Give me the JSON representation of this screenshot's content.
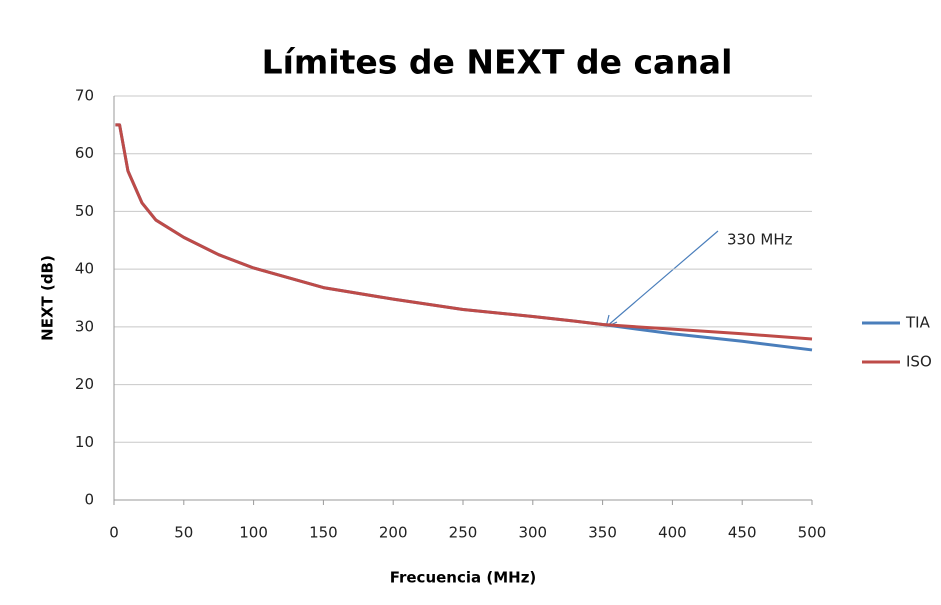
{
  "chart_data": {
    "type": "line",
    "title": "Límites de NEXT de canal",
    "x_label": "Frecuencia (MHz)",
    "y_label": "NEXT (dB)",
    "annotation": "330 MHz",
    "x": [
      1,
      4,
      10,
      20,
      30,
      50,
      75,
      100,
      150,
      200,
      250,
      300,
      330,
      350,
      400,
      450,
      500
    ],
    "series": [
      {
        "name": "TIA",
        "color": "#4a7ebb",
        "values": [
          65,
          65,
          57,
          51.5,
          48.5,
          45.5,
          42.5,
          40.2,
          36.8,
          34.8,
          33,
          31.8,
          31,
          30.4,
          28.8,
          27.5,
          26
        ]
      },
      {
        "name": "ISO",
        "color": "#be4b48",
        "values": [
          65,
          65,
          57,
          51.5,
          48.5,
          45.5,
          42.5,
          40.2,
          36.8,
          34.8,
          33,
          31.8,
          31,
          30.4,
          29.6,
          28.8,
          27.9
        ]
      }
    ],
    "xlim": [
      0,
      500
    ],
    "xticks": [
      0,
      50,
      100,
      150,
      200,
      250,
      300,
      350,
      400,
      450,
      500
    ],
    "ylim": [
      0,
      70
    ],
    "yticks": [
      0,
      10,
      20,
      30,
      40,
      50,
      60,
      70
    ],
    "grid": true,
    "legend": "right"
  }
}
